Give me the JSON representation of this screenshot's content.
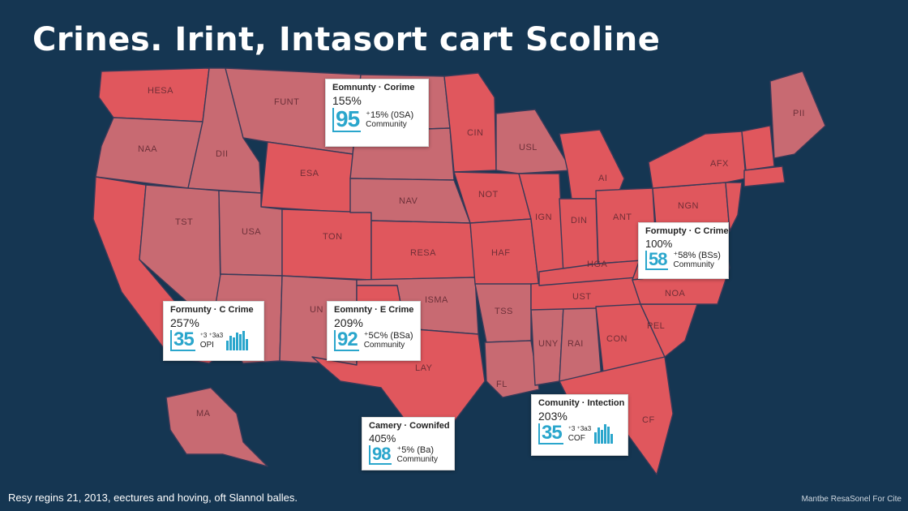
{
  "title": "Crines. Irint, Intasort cart Scoline",
  "colors": {
    "background": "#153652",
    "state_light": "#c86a72",
    "state_dark": "#e0575d",
    "border": "#3a3a58",
    "accent": "#2aa6cc"
  },
  "state_labels": [
    "HESA",
    "FUNT",
    "NAA",
    "DII",
    "ESA",
    "TST",
    "USA",
    "NAV",
    "TON",
    "RESA",
    "NOT",
    "CIN",
    "USL",
    "AI",
    "IGN",
    "DIN",
    "ANT",
    "NGN",
    "AFX",
    "PII",
    "HAF",
    "HGA",
    "ISMA",
    "TSS",
    "UST",
    "NOA",
    "UN",
    "LAY",
    "UNY",
    "RAI",
    "CON",
    "PEL",
    "FL",
    "CF",
    "MA"
  ],
  "cards": [
    {
      "heading": "Eomnunty · Corime",
      "percent": "155%",
      "big": "95",
      "sub": "⁺15% (0SA)",
      "community": "Community",
      "has_bars": false
    },
    {
      "heading": "Formupty · C Crime",
      "percent": "100%",
      "big": "58",
      "sub": "⁺58% (BSs)",
      "community": "Community",
      "has_bars": false
    },
    {
      "heading": "Formunty · C Crime",
      "percent": "257%",
      "big": "35",
      "sub": "⁺3 ⁺3a3",
      "community": "OPI",
      "has_bars": true
    },
    {
      "heading": "Eomnnty · E Crime",
      "percent": "209%",
      "big": "92",
      "sub": "⁺5C% (BSa)",
      "community": "Community",
      "has_bars": false
    },
    {
      "heading": "Comunity · Intection",
      "percent": "203%",
      "big": "35",
      "sub": "⁺3 ⁺3a3",
      "community": "COF",
      "has_bars": true
    },
    {
      "heading": "Camery · Cownifed",
      "percent": "405%",
      "big": "98",
      "sub": "⁺5% (Ba)",
      "community": "Community",
      "has_bars": false
    }
  ],
  "footer": {
    "caption": "Resy regins 21, 2013, eectures and hoving, oft Slannol balles.",
    "credit": "Mantbe ResaSonel For Cite"
  }
}
